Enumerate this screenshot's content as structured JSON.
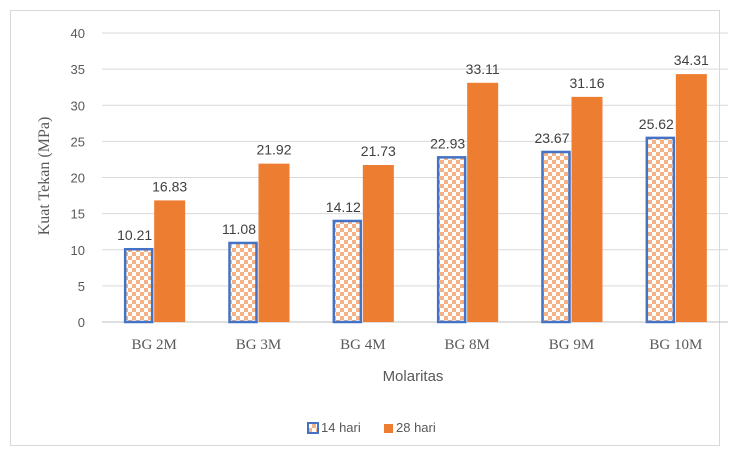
{
  "chart_data": {
    "type": "bar",
    "categories": [
      "BG 2M",
      "BG 3M",
      "BG 4M",
      "BG 8M",
      "BG 9M",
      "BG 10M"
    ],
    "series": [
      {
        "name": "14 hari",
        "values": [
          10.21,
          11.08,
          14.12,
          22.93,
          23.67,
          25.62
        ],
        "fill": "pattern-check",
        "border": "#4472c4",
        "check": "#f4b183"
      },
      {
        "name": "28 hari",
        "values": [
          16.83,
          21.92,
          21.73,
          33.11,
          31.16,
          34.31
        ],
        "color": "#ed7d31"
      }
    ],
    "data_labels": {
      "14 hari": [
        "10.21",
        "11.08",
        "14.12",
        "22.93",
        "23.67",
        "25.62"
      ],
      "28 hari": [
        "16.83",
        "21.92",
        "21.73",
        "33.11",
        "31.16",
        "34.31"
      ]
    },
    "title": "",
    "xlabel": "Molaritas",
    "ylabel": "Kuat Tekan (MPa)",
    "ylim": [
      0,
      40
    ],
    "yticks": [
      "0",
      "5",
      "10",
      "15",
      "20",
      "25",
      "30",
      "35",
      "40"
    ],
    "grid": true,
    "legend": "bottom"
  }
}
